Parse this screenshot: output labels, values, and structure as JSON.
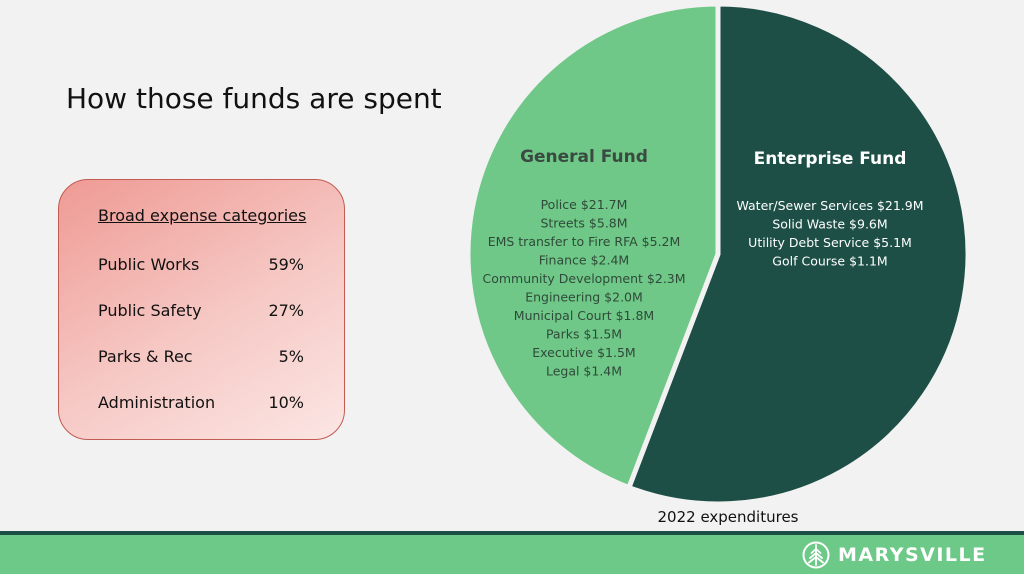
{
  "title": "How those funds are spent",
  "categories_card": {
    "heading": "Broad expense categories",
    "rows": [
      {
        "label": "Public Works",
        "pct": "59%"
      },
      {
        "label": "Public Safety",
        "pct": "27%"
      },
      {
        "label": "Parks & Rec",
        "pct": "5%"
      },
      {
        "label": "Administration",
        "pct": "10%"
      }
    ]
  },
  "chart_data": {
    "type": "pie",
    "caption": "2022 expenditures",
    "slices": [
      {
        "name": "General Fund",
        "percent": 44.2,
        "color": "#6fc887",
        "items": [
          "Police $21.7M",
          "Streets $5.8M",
          "EMS transfer to Fire RFA $5.2M",
          "Finance $2.4M",
          "Community Development $2.3M",
          "Engineering $2.0M",
          "Municipal Court $1.8M",
          "Parks $1.5M",
          "Executive $1.5M",
          "Legal $1.4M"
        ]
      },
      {
        "name": "Enterprise Fund",
        "percent": 55.8,
        "color": "#1d4f46",
        "items": [
          "Water/Sewer Services $21.9M",
          "Solid Waste $9.6M",
          "Utility Debt Service $5.1M",
          "Golf Course $1.1M"
        ]
      }
    ]
  },
  "footer": {
    "brand": "MARYSVILLE",
    "logo_icon": "tree-icon",
    "bar_color": "#6dc987"
  }
}
